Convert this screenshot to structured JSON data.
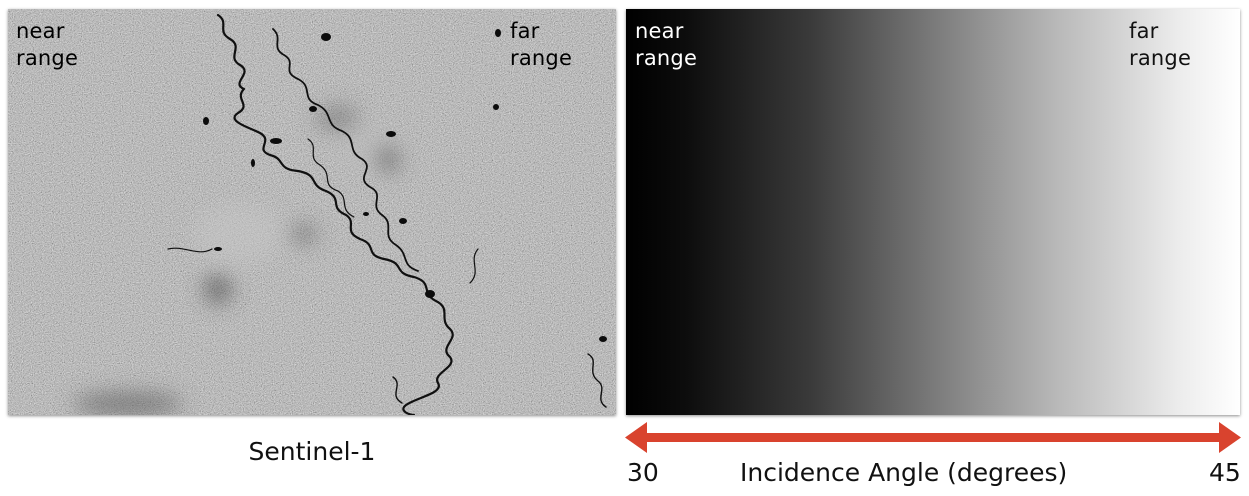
{
  "sar_image": {
    "near_label": "near\nrange",
    "far_label": "far\nrange",
    "caption": "Sentinel-1"
  },
  "gradient": {
    "near_label": "near\nrange",
    "far_label": "far\nrange",
    "start_color": "#000000",
    "end_color": "#ffffff"
  },
  "axis": {
    "min_label": "30",
    "max_label": "45",
    "title": "Incidence Angle (degrees)",
    "arrow_color": "#d9432e"
  }
}
